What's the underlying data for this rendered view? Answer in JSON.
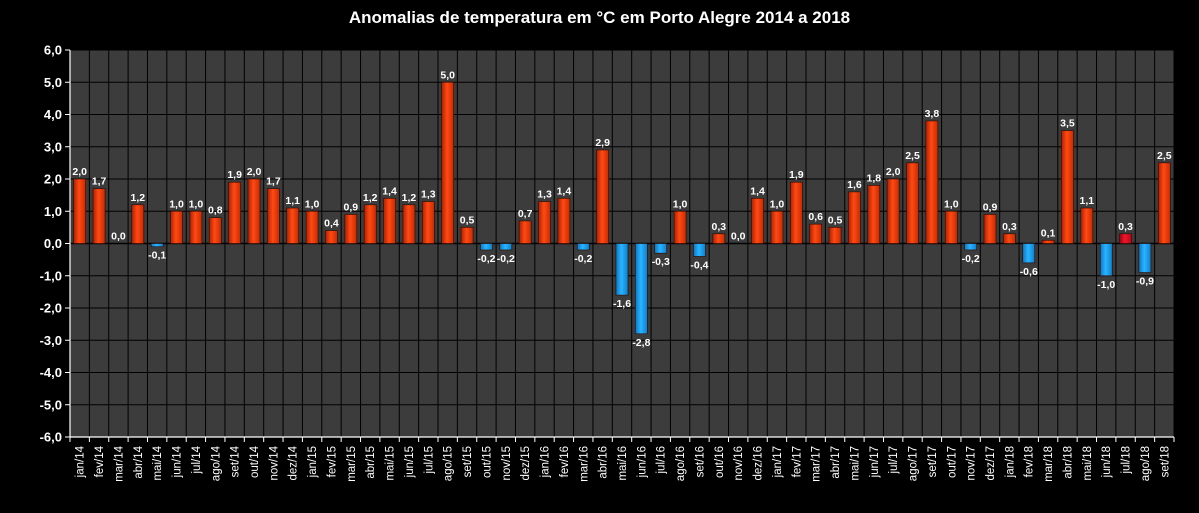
{
  "chart_data": {
    "type": "bar",
    "title": "Anomalias de temperatura em °C em Porto Alegre 2014 a 2018",
    "xlabel": "",
    "ylabel": "",
    "ylim": [
      -6.0,
      6.0
    ],
    "yticks": [
      "6,0",
      "5,0",
      "4,0",
      "3,0",
      "2,0",
      "1,0",
      "0,0",
      "-1,0",
      "-2,0",
      "-3,0",
      "-4,0",
      "-5,0",
      "-6,0"
    ],
    "grid": true,
    "legend": "none",
    "categories": [
      "jan/14",
      "fev/14",
      "mar/14",
      "abr/14",
      "mai/14",
      "jun/14",
      "jul/14",
      "ago/14",
      "set/14",
      "out/14",
      "nov/14",
      "dez/14",
      "jan/15",
      "fev/15",
      "mar/15",
      "abr/15",
      "mai/15",
      "jun/15",
      "jul/15",
      "ago/15",
      "set/15",
      "out/15",
      "nov/15",
      "dez/15",
      "jan/16",
      "fev/16",
      "mar/16",
      "abr/16",
      "mai/16",
      "jun/16",
      "jul/16",
      "ago/16",
      "set/16",
      "out/16",
      "nov/16",
      "dez/16",
      "jan/17",
      "fev/17",
      "mar/17",
      "abr/17",
      "mai/17",
      "jun/17",
      "jul/17",
      "ago/17",
      "set/17",
      "out/17",
      "nov/17",
      "dez/17",
      "jan/18",
      "fev/18",
      "mar/18",
      "abr/18",
      "mai/18",
      "jun/18",
      "jul/18",
      "ago/18",
      "set/18"
    ],
    "values": [
      2.0,
      1.7,
      0.0,
      1.2,
      -0.1,
      1.0,
      1.0,
      0.8,
      1.9,
      2.0,
      1.7,
      1.1,
      1.0,
      0.4,
      0.9,
      1.2,
      1.4,
      1.2,
      1.3,
      5.0,
      0.5,
      -0.2,
      -0.2,
      0.7,
      1.3,
      1.4,
      -0.2,
      2.9,
      -1.6,
      -2.8,
      -0.3,
      1.0,
      -0.4,
      0.3,
      0.0,
      1.4,
      1.0,
      1.9,
      0.6,
      0.5,
      1.6,
      1.8,
      2.0,
      2.5,
      3.8,
      1.0,
      -0.2,
      0.9,
      0.3,
      -0.6,
      0.1,
      3.5,
      1.1,
      -1.0,
      0.3,
      -0.9,
      2.5
    ],
    "data_labels": [
      "2,0",
      "1,7",
      "0,0",
      "1,2",
      "-0,1",
      "1,0",
      "1,0",
      "0,8",
      "1,9",
      "2,0",
      "1,7",
      "1,1",
      "1,0",
      "0,4",
      "0,9",
      "1,2",
      "1,4",
      "1,2",
      "1,3",
      "5,0",
      "0,5",
      "-0,2",
      "-0,2",
      "0,7",
      "1,3",
      "1,4",
      "-0,2",
      "2,9",
      "-1,6",
      "-2,8",
      "-0,3",
      "1,0",
      "-0,4",
      "0,3",
      "0,0",
      "1,4",
      "1,0",
      "1,9",
      "0,6",
      "0,5",
      "1,6",
      "1,8",
      "2,0",
      "2,5",
      "3,8",
      "1,0",
      "-0,2",
      "0,9",
      "0,3",
      "-0,6",
      "0,1",
      "3,5",
      "1,1",
      "-1,0",
      "0,3",
      "-0,9",
      "2,5"
    ],
    "colors": {
      "positive": "#ff3a0a",
      "negative": "#1aa6ff",
      "highlight": "#e8101e",
      "plot_background": "#3c3c3c",
      "grid": "#000000",
      "background": "#000000"
    },
    "highlight_category": "jul/18"
  }
}
